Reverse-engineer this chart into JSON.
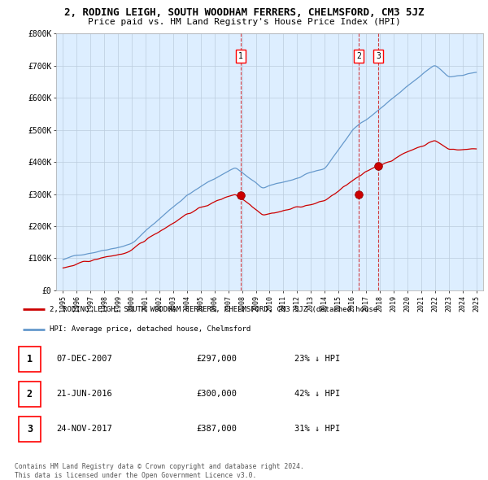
{
  "title": "2, RODING LEIGH, SOUTH WOODHAM FERRERS, CHELMSFORD, CM3 5JZ",
  "subtitle": "Price paid vs. HM Land Registry's House Price Index (HPI)",
  "ylim": [
    0,
    800000
  ],
  "yticks": [
    0,
    100000,
    200000,
    300000,
    400000,
    500000,
    600000,
    700000,
    800000
  ],
  "ytick_labels": [
    "£0",
    "£100K",
    "£200K",
    "£300K",
    "£400K",
    "£500K",
    "£600K",
    "£700K",
    "£800K"
  ],
  "hpi_line_color": "#6699cc",
  "price_color": "#cc0000",
  "plot_bg_color": "#ddeeff",
  "bg_color": "#ffffff",
  "grid_color": "#bbccdd",
  "xlim_min": 1995.0,
  "xlim_max": 2025.5,
  "sales": [
    {
      "label": "1",
      "year": 2007.92,
      "price": 297000
    },
    {
      "label": "2",
      "year": 2016.47,
      "price": 300000
    },
    {
      "label": "3",
      "year": 2017.9,
      "price": 387000
    }
  ],
  "legend_entries": [
    "2, RODING LEIGH, SOUTH WOODHAM FERRERS, CHELMSFORD, CM3 5JZ (detached house",
    "HPI: Average price, detached house, Chelmsford"
  ],
  "table_rows": [
    {
      "num": "1",
      "date": "07-DEC-2007",
      "price": "£297,000",
      "hpi": "23% ↓ HPI"
    },
    {
      "num": "2",
      "date": "21-JUN-2016",
      "price": "£300,000",
      "hpi": "42% ↓ HPI"
    },
    {
      "num": "3",
      "date": "24-NOV-2017",
      "price": "£387,000",
      "hpi": "31% ↓ HPI"
    }
  ],
  "footer": "Contains HM Land Registry data © Crown copyright and database right 2024.\nThis data is licensed under the Open Government Licence v3.0."
}
